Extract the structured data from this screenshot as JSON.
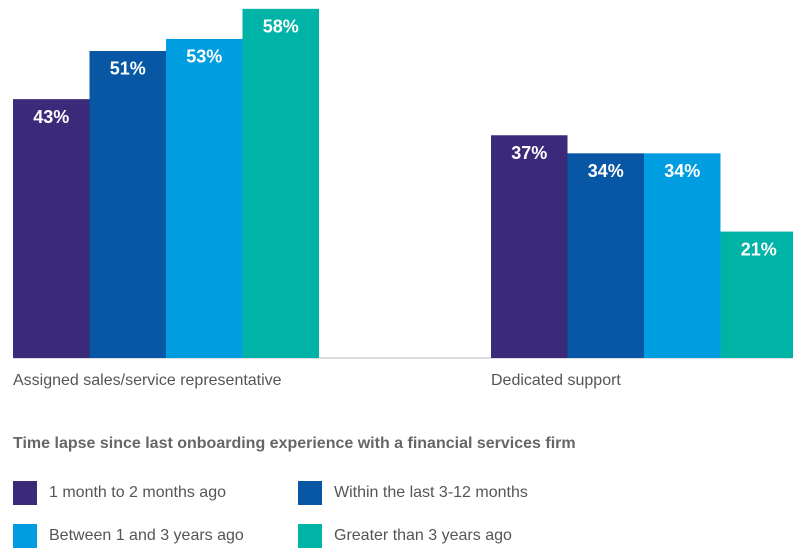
{
  "chart_data": {
    "type": "bar",
    "categories": [
      "Assigned sales/service representative",
      "Dedicated support"
    ],
    "legend_title": "Time lapse since last onboarding experience with a financial services firm",
    "series": [
      {
        "name": "1 month to 2 months ago",
        "color": "#3b2a7a",
        "values": [
          43,
          37
        ],
        "value_labels": [
          "43%",
          "37%"
        ]
      },
      {
        "name": "Within the last 3-12 months",
        "color": "#0857a5",
        "values": [
          51,
          34
        ],
        "value_labels": [
          "51%",
          "34%"
        ]
      },
      {
        "name": "Between 1 and 3 years ago",
        "color": "#009ee0",
        "values": [
          53,
          34
        ],
        "value_labels": [
          "53%",
          "34%"
        ]
      },
      {
        "name": "Greater than 3 years ago",
        "color": "#00b3a7",
        "values": [
          58,
          21
        ],
        "value_labels": [
          "58%",
          "21%"
        ]
      }
    ],
    "legend": "bottom"
  }
}
